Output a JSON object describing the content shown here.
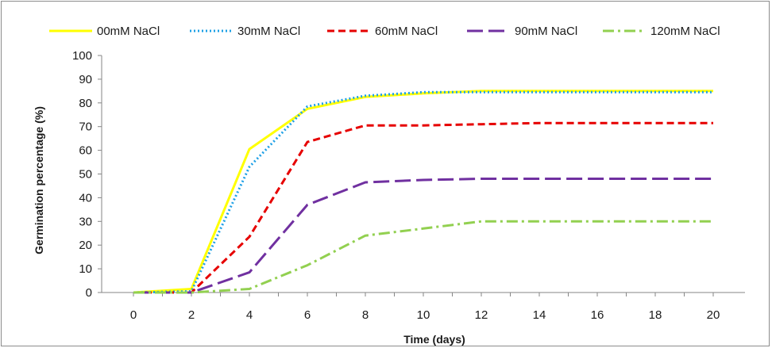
{
  "chart_data": {
    "type": "line",
    "title": "",
    "xlabel": "Time (days)",
    "ylabel": "Germination percentage (%)",
    "x": [
      0,
      2,
      4,
      6,
      8,
      10,
      12,
      14,
      16,
      18,
      20
    ],
    "xlim": [
      0,
      20
    ],
    "ylim": [
      0,
      100
    ],
    "x_ticks": [
      "0",
      "2",
      "4",
      "6",
      "8",
      "10",
      "12",
      "14",
      "16",
      "18",
      "20"
    ],
    "y_ticks": [
      "0",
      "10",
      "20",
      "30",
      "40",
      "50",
      "60",
      "70",
      "80",
      "90",
      "100"
    ],
    "grid": false,
    "legend_position": "top",
    "series": [
      {
        "name": "00mM NaCl",
        "values": [
          0,
          1.5,
          60.5,
          77.5,
          82.5,
          84,
          85,
          85,
          85,
          85,
          85
        ],
        "color": "#ffff00",
        "style": "solid"
      },
      {
        "name": "30mM NaCl",
        "values": [
          0,
          0.5,
          53,
          78.5,
          83,
          84.5,
          84.5,
          84.5,
          84.5,
          84.5,
          84.5
        ],
        "color": "#1ea0e6",
        "style": "dotted"
      },
      {
        "name": "60mM NaCl",
        "values": [
          0,
          0,
          23.5,
          63.5,
          70.5,
          70.5,
          71,
          71.5,
          71.5,
          71.5,
          71.5
        ],
        "color": "#e60000",
        "style": "dashed"
      },
      {
        "name": "90mM NaCl",
        "values": [
          0,
          0,
          8.5,
          37,
          46.5,
          47.5,
          48,
          48,
          48,
          48,
          48
        ],
        "color": "#7030a0",
        "style": "long-dash"
      },
      {
        "name": "120mM NaCl",
        "values": [
          0,
          0,
          1.5,
          11.5,
          24,
          27,
          30,
          30,
          30,
          30,
          30
        ],
        "color": "#92d050",
        "style": "dash-dot"
      }
    ]
  }
}
